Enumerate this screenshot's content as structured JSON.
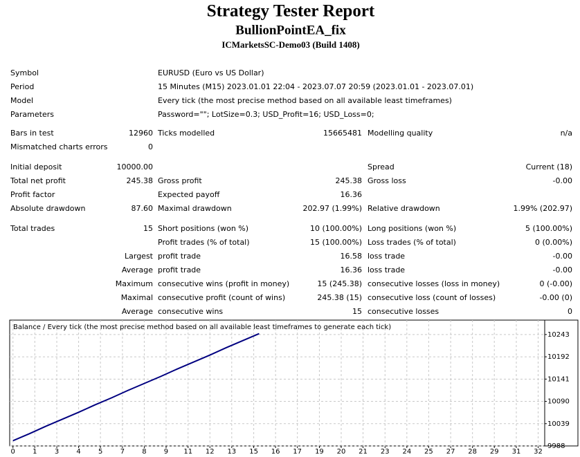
{
  "header": {
    "title": "Strategy Tester Report",
    "subtitle": "BullionPointEA_fix",
    "server": "ICMarketsSC-Demo03 (Build 1408)"
  },
  "sections": [
    [
      [
        "Symbol",
        null,
        "EURUSD (Euro vs US Dollar)",
        null,
        null,
        null
      ],
      [
        "Period",
        null,
        "15 Minutes (M15) 2023.01.01 22:04 - 2023.07.07 20:59 (2023.01.01 - 2023.07.01)",
        null,
        null,
        null
      ],
      [
        "Model",
        null,
        "Every tick (the most precise method based on all available least timeframes)",
        null,
        null,
        null
      ],
      [
        "Parameters",
        null,
        "Password=\"\"; LotSize=0.3; USD_Profit=16; USD_Loss=0;",
        null,
        null,
        null
      ]
    ],
    [
      [
        "Bars in test",
        "12960",
        "Ticks modelled",
        "15665481",
        "Modelling quality",
        "n/a"
      ],
      [
        "Mismatched charts errors",
        "0",
        null,
        null,
        null,
        null
      ]
    ],
    [
      [
        "Initial deposit",
        "10000.00",
        null,
        null,
        "Spread",
        "Current (18)"
      ],
      [
        "Total net profit",
        "245.38",
        "Gross profit",
        "245.38",
        "Gross loss",
        "-0.00"
      ],
      [
        "Profit factor",
        null,
        "Expected payoff",
        "16.36",
        null,
        null
      ],
      [
        "Absolute drawdown",
        "87.60",
        "Maximal drawdown",
        "202.97 (1.99%)",
        "Relative drawdown",
        "1.99% (202.97)"
      ]
    ],
    [
      [
        "Total trades",
        "15",
        "Short positions (won %)",
        "10 (100.00%)",
        "Long positions (won %)",
        "5 (100.00%)"
      ],
      [
        null,
        null,
        "Profit trades (% of total)",
        "15 (100.00%)",
        "Loss trades (% of total)",
        "0 (0.00%)"
      ],
      [
        null,
        "Largest",
        "profit trade",
        "16.58",
        "loss trade",
        "-0.00"
      ],
      [
        null,
        "Average",
        "profit trade",
        "16.36",
        "loss trade",
        "-0.00"
      ],
      [
        null,
        "Maximum",
        "consecutive wins (profit in money)",
        "15 (245.38)",
        "consecutive losses (loss in money)",
        "0 (-0.00)"
      ],
      [
        null,
        "Maximal",
        "consecutive profit (count of wins)",
        "245.38 (15)",
        "consecutive loss (count of losses)",
        "-0.00 (0)"
      ],
      [
        null,
        "Average",
        "consecutive wins",
        "15",
        "consecutive losses",
        "0"
      ]
    ]
  ],
  "chart": {
    "type": "line",
    "title": "Balance / Every tick (the most precise method based on all available least timeframes to generate each tick)",
    "x": [
      0,
      1,
      2,
      3,
      4,
      5,
      6,
      7,
      8,
      9,
      10,
      11,
      12,
      13,
      14,
      15
    ],
    "values": [
      10000,
      10016,
      10033,
      10049,
      10065,
      10082,
      10098,
      10115,
      10131,
      10147,
      10164,
      10180,
      10196,
      10213,
      10229,
      10245
    ],
    "color": "#000080",
    "xlim": [
      -0.2,
      32.4
    ],
    "ylim": [
      9988,
      10276
    ],
    "xticks": [
      0,
      {
        "value": 1.33,
        "label": "1"
      },
      {
        "value": 2.67,
        "label": "3"
      },
      4,
      {
        "value": 5.33,
        "label": "5"
      },
      {
        "value": 6.67,
        "label": "7"
      },
      8,
      {
        "value": 9.33,
        "label": "9"
      },
      {
        "value": 10.67,
        "label": "11"
      },
      12,
      {
        "value": 13.33,
        "label": "13"
      },
      {
        "value": 14.67,
        "label": "15"
      },
      16,
      {
        "value": 17.33,
        "label": "17"
      },
      {
        "value": 18.67,
        "label": "19"
      },
      20,
      {
        "value": 21.33,
        "label": "21"
      },
      {
        "value": 22.67,
        "label": "23"
      },
      24,
      {
        "value": 25.33,
        "label": "25"
      },
      {
        "value": 26.67,
        "label": "27"
      },
      28,
      {
        "value": 29.33,
        "label": "29"
      },
      {
        "value": 30.67,
        "label": "31"
      },
      32
    ],
    "yticks": [
      9988,
      10039,
      10090,
      10141,
      10192,
      10243
    ],
    "grid": true
  }
}
